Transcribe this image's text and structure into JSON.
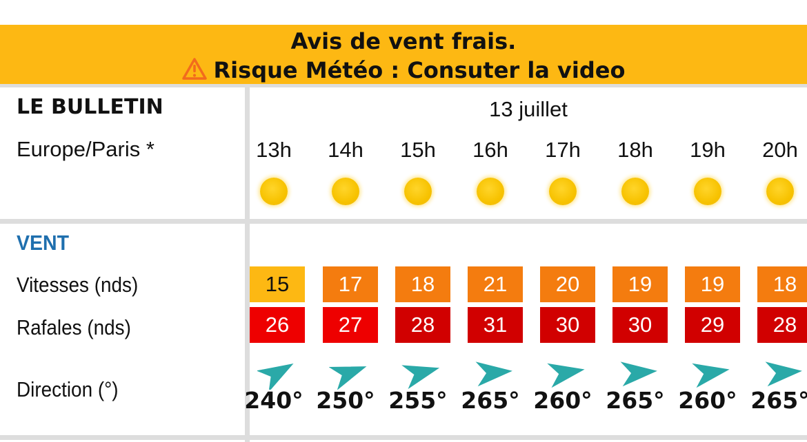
{
  "banner": {
    "line1": "Avis de vent frais.",
    "line2": "Risque Météo : Consuter la video",
    "background": "#fdb813",
    "icon": "warning-triangle-icon"
  },
  "bulletin": {
    "title": "LE BULLETIN",
    "timezone": "Europe/Paris *",
    "date": "13 juillet"
  },
  "hours": [
    "13h",
    "14h",
    "15h",
    "16h",
    "17h",
    "18h",
    "19h",
    "20h"
  ],
  "weather_icons": [
    "sun-icon",
    "sun-icon",
    "sun-icon",
    "sun-icon",
    "sun-icon",
    "sun-icon",
    "sun-icon",
    "sun-icon"
  ],
  "wind": {
    "section_title": "VENT",
    "speed_label": "Vitesses (nds)",
    "gust_label": "Rafales (nds)",
    "direction_label": "Direction (°)",
    "speeds": [
      "15",
      "17",
      "18",
      "21",
      "20",
      "19",
      "19",
      "18"
    ],
    "speed_colors": [
      "#fdb813",
      "#f47c0f",
      "#f47c0f",
      "#f47c0f",
      "#f47c0f",
      "#f47c0f",
      "#f47c0f",
      "#f47c0f"
    ],
    "speed_text_colors": [
      "#111111",
      "#ffffff",
      "#ffffff",
      "#ffffff",
      "#ffffff",
      "#ffffff",
      "#ffffff",
      "#ffffff"
    ],
    "gusts": [
      "26",
      "27",
      "28",
      "31",
      "30",
      "30",
      "29",
      "28"
    ],
    "gust_colors": [
      "#ee0000",
      "#ee0000",
      "#d10000",
      "#d10000",
      "#d10000",
      "#d10000",
      "#d10000",
      "#d10000"
    ],
    "directions": [
      240,
      250,
      255,
      265,
      260,
      265,
      260,
      265
    ],
    "direction_labels": [
      "240°",
      "250°",
      "255°",
      "265°",
      "260°",
      "265°",
      "260°",
      "265°"
    ],
    "arrow_color": "#2aa9a8"
  }
}
